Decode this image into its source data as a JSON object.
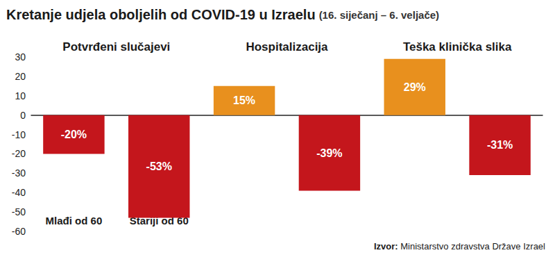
{
  "chart_data": {
    "type": "bar",
    "title": "Kretanje udjela oboljelih od COVID-19 u Izraelu",
    "subtitle": "(16. siječanj – 6. veljače)",
    "annotations": [
      "Potvrđeni slučajevi",
      "Hospitalizacija",
      "Teška klinička slika"
    ],
    "source": "Izvor: Ministarstvo zdravstva Države Izrael",
    "categories": [
      "Mlađi od 60",
      "Stariji od 60",
      null,
      null,
      null,
      null
    ],
    "values": [
      -20,
      -53,
      15,
      -39,
      29,
      -31
    ],
    "value_labels": [
      "-20%",
      "-53%",
      "15%",
      "-39%",
      "29%",
      "-31%"
    ],
    "colors": [
      "#c4161c",
      "#c4161c",
      "#e8901e",
      "#c4161c",
      "#e8901e",
      "#c4161c"
    ],
    "ylim": [
      -60,
      30
    ],
    "yticks": [
      -60,
      -50,
      -40,
      -30,
      -20,
      -10,
      0,
      10,
      20,
      30
    ],
    "grid": false,
    "data_labels": true
  }
}
